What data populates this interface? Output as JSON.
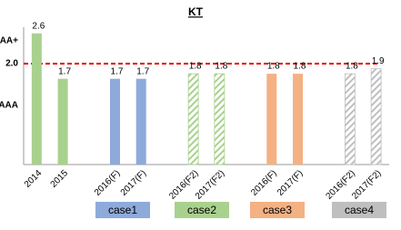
{
  "chart_data": {
    "type": "bar",
    "title": "KT",
    "categories": [
      "2014",
      "2015",
      null,
      "2016(F)",
      "2017(F)",
      null,
      "2016(F2)",
      "2017(F2)",
      null,
      "2016(F)",
      "2017(F)",
      null,
      "2016(F2)",
      "2017(F2)"
    ],
    "series": [
      {
        "color": "#a9d18e",
        "values": [
          2.6,
          1.7,
          null,
          null,
          null,
          null,
          null,
          null,
          null,
          null,
          null,
          null,
          null,
          null
        ]
      },
      {
        "name": "case1",
        "color": "#8eaadb",
        "values": [
          null,
          null,
          null,
          1.7,
          1.7,
          null,
          null,
          null,
          null,
          null,
          null,
          null,
          null,
          null
        ]
      },
      {
        "name": "case2",
        "color": "#a9d18e",
        "pattern": "hatch",
        "values": [
          null,
          null,
          null,
          null,
          null,
          null,
          1.8,
          1.8,
          null,
          null,
          null,
          null,
          null,
          null
        ]
      },
      {
        "name": "case3",
        "color": "#f4b183",
        "values": [
          null,
          null,
          null,
          null,
          null,
          null,
          null,
          null,
          null,
          1.8,
          1.8,
          null,
          null,
          null
        ]
      },
      {
        "name": "case4",
        "color": "#bfbfbf",
        "pattern": "hatch",
        "values": [
          null,
          null,
          null,
          null,
          null,
          null,
          null,
          null,
          null,
          null,
          null,
          null,
          1.8,
          1.9
        ]
      }
    ],
    "ylim": [
      0,
      2.8
    ],
    "yticks": [
      {
        "value": 2.45,
        "label": "AA+"
      },
      {
        "value": 1.17,
        "label": "AAA"
      }
    ],
    "reference_line": {
      "value": 2,
      "label": "2.0",
      "color": "#e00000"
    }
  }
}
